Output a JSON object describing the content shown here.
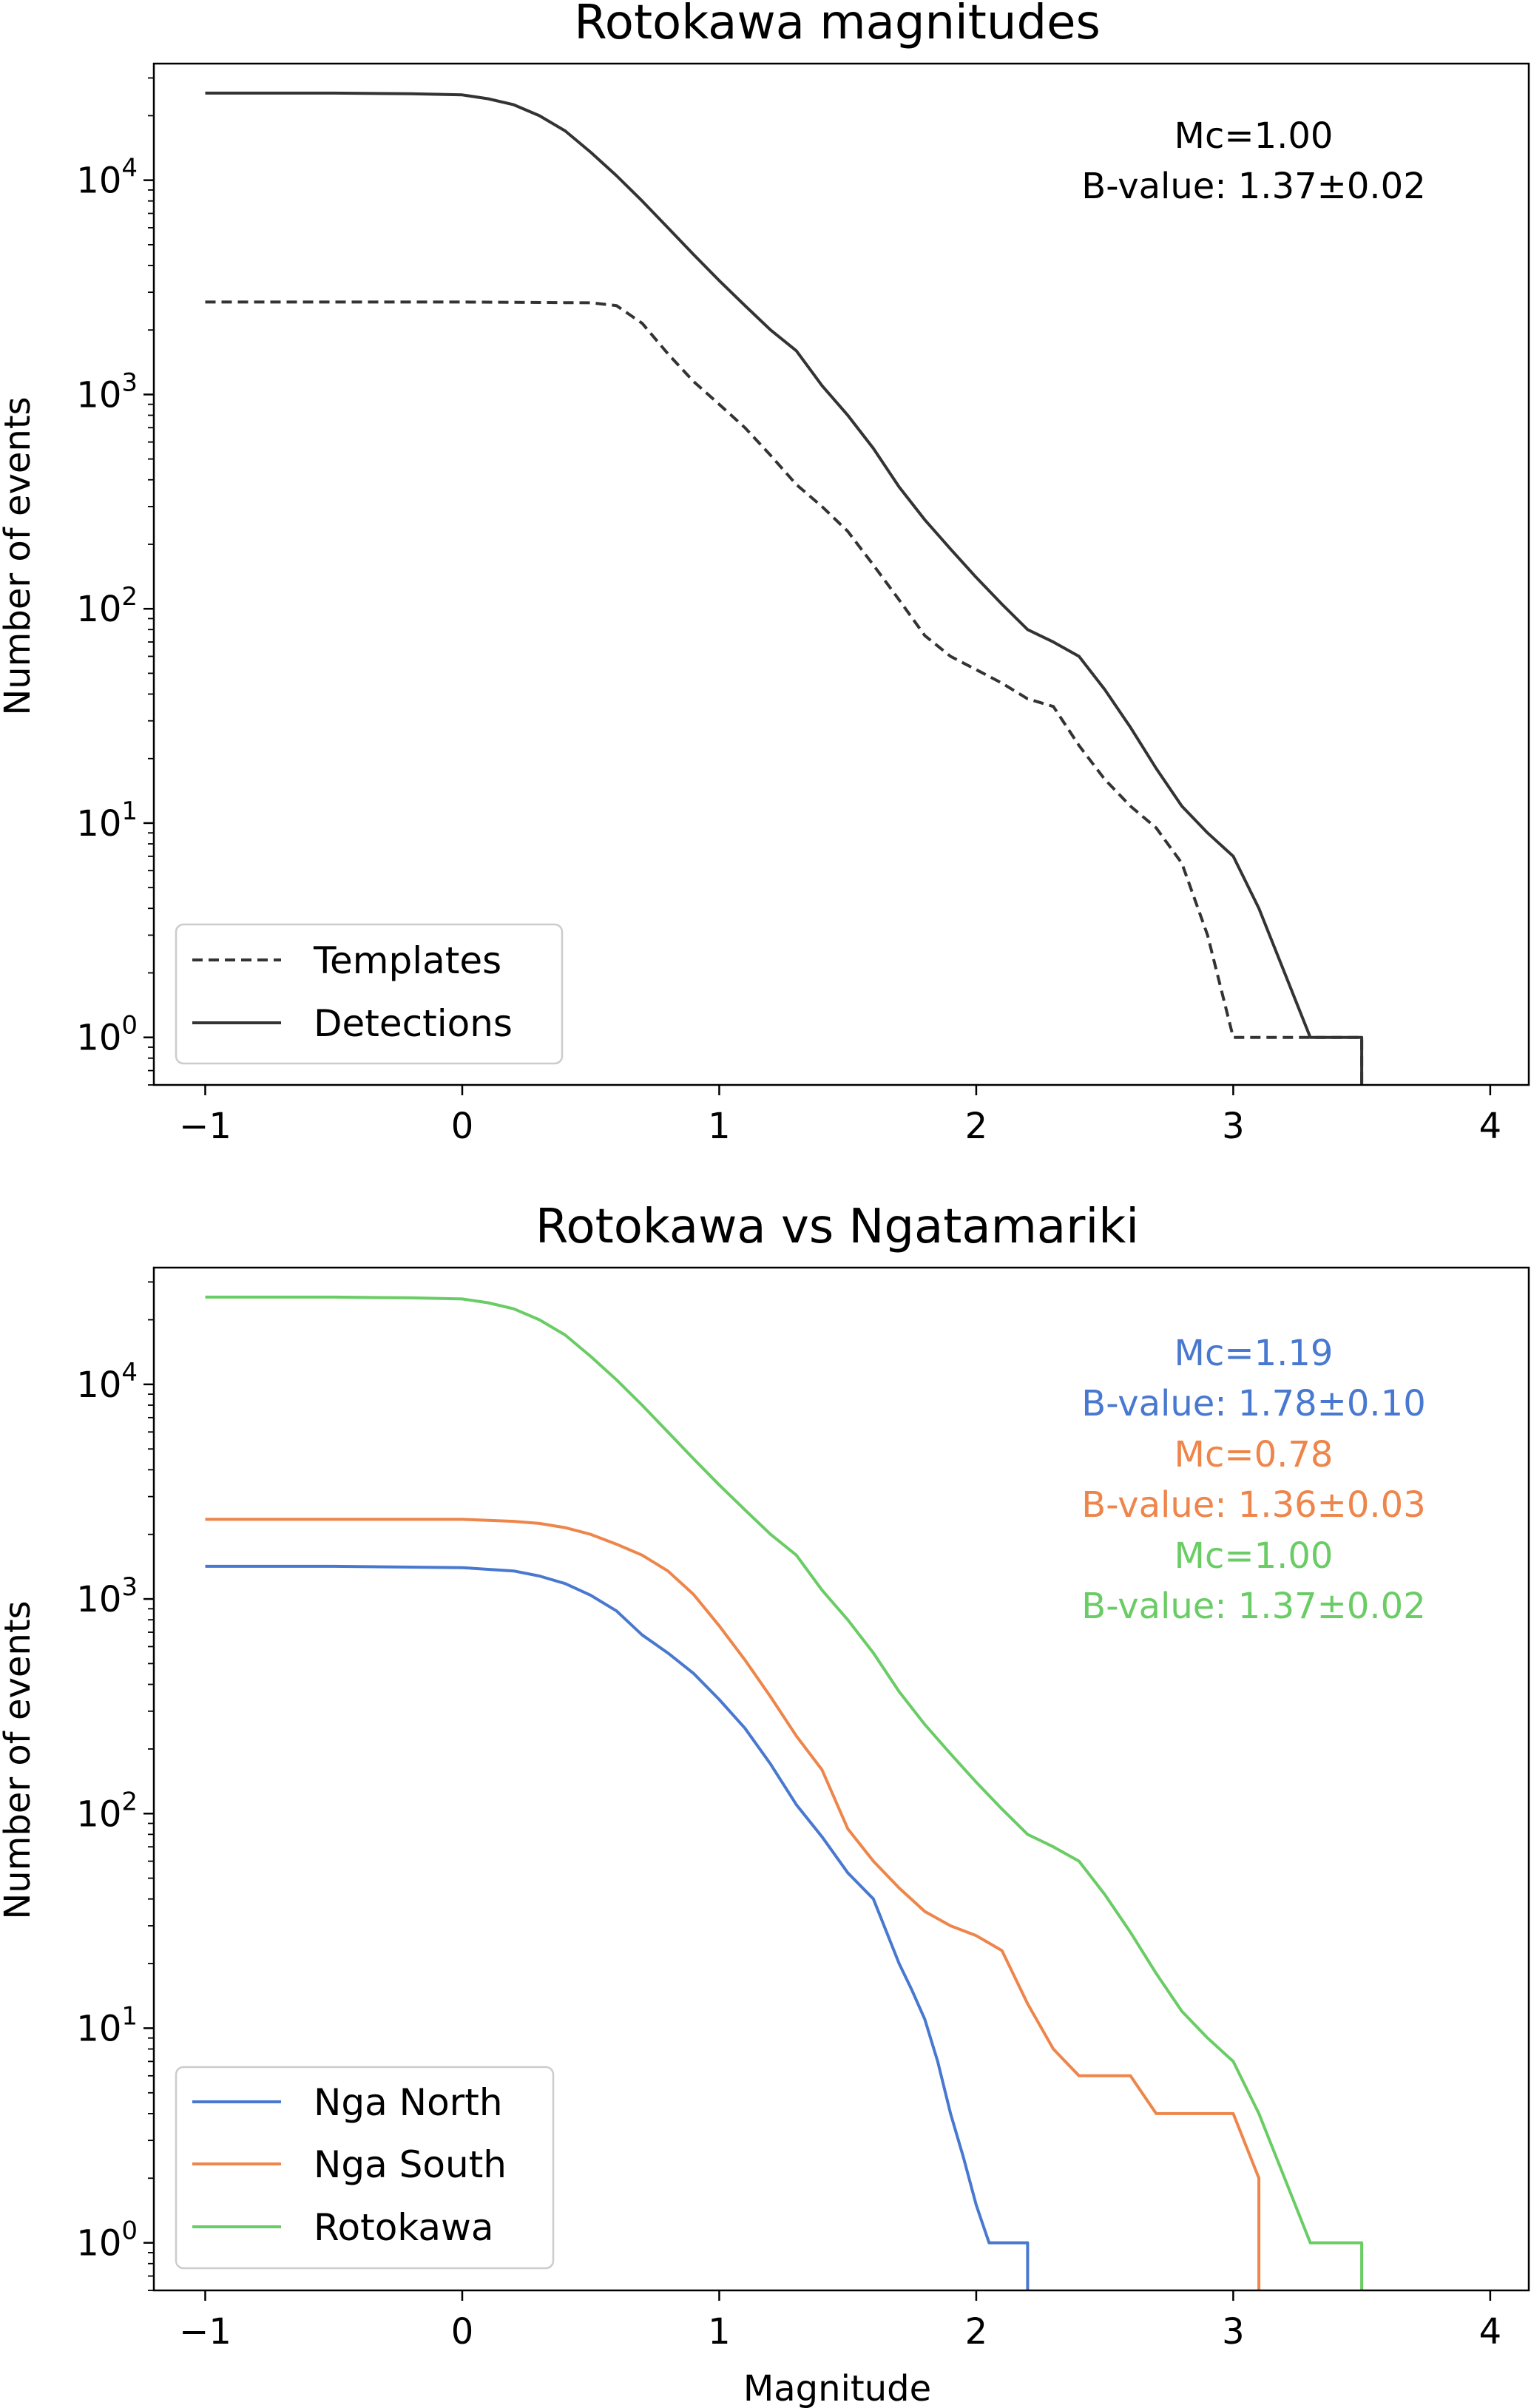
{
  "chart_data": [
    {
      "type": "line",
      "title": "Rotokawa magnitudes",
      "xlabel": "",
      "ylabel": "Number of events",
      "xlim": [
        -1.2,
        4.15
      ],
      "ylim": [
        0.6,
        35000
      ],
      "yscale": "log",
      "xticks": [
        {
          "value": -1,
          "label": "−1"
        },
        {
          "value": 0,
          "label": "0"
        },
        {
          "value": 1,
          "label": "1"
        },
        {
          "value": 2,
          "label": "2"
        },
        {
          "value": 3,
          "label": "3"
        },
        {
          "value": 4,
          "label": "4"
        }
      ],
      "yticks": [
        {
          "value": 1,
          "base": "10",
          "exp": "0"
        },
        {
          "value": 10,
          "base": "10",
          "exp": "1"
        },
        {
          "value": 100,
          "base": "10",
          "exp": "2"
        },
        {
          "value": 1000,
          "base": "10",
          "exp": "3"
        },
        {
          "value": 10000,
          "base": "10",
          "exp": "4"
        }
      ],
      "grid": false,
      "legend_position": "bottom-left",
      "annotations": [
        {
          "text": "Mc=1.00",
          "color": "#000000"
        },
        {
          "text": "B-value: 1.37±0.02",
          "color": "#000000"
        }
      ],
      "series": [
        {
          "name": "Templates",
          "color": "#333333",
          "dash": true,
          "x": [
            -1.0,
            -0.5,
            0.0,
            0.5,
            0.6,
            0.7,
            0.8,
            0.9,
            1.0,
            1.1,
            1.2,
            1.3,
            1.4,
            1.5,
            1.6,
            1.7,
            1.8,
            1.9,
            2.0,
            2.1,
            2.2,
            2.3,
            2.4,
            2.5,
            2.6,
            2.7,
            2.8,
            2.9,
            3.0,
            3.1,
            3.2,
            3.3,
            3.4,
            3.5,
            3.5
          ],
          "y": [
            2700,
            2700,
            2700,
            2680,
            2600,
            2150,
            1550,
            1150,
            900,
            700,
            520,
            380,
            300,
            230,
            160,
            110,
            75,
            60,
            52,
            45,
            38,
            35,
            23,
            16,
            12,
            9.5,
            6.5,
            3.0,
            1.0,
            1.0,
            1.0,
            1.0,
            1.0,
            1.0,
            0.6
          ]
        },
        {
          "name": "Detections",
          "color": "#333333",
          "dash": false,
          "x": [
            -1.0,
            -0.5,
            -0.2,
            0.0,
            0.1,
            0.2,
            0.3,
            0.4,
            0.5,
            0.6,
            0.7,
            0.8,
            0.9,
            1.0,
            1.1,
            1.2,
            1.3,
            1.4,
            1.5,
            1.6,
            1.7,
            1.8,
            1.9,
            2.0,
            2.1,
            2.2,
            2.3,
            2.4,
            2.5,
            2.6,
            2.7,
            2.8,
            2.9,
            3.0,
            3.1,
            3.2,
            3.3,
            3.4,
            3.5,
            3.5
          ],
          "y": [
            25500,
            25500,
            25300,
            25000,
            24000,
            22500,
            20000,
            17000,
            13500,
            10500,
            8000,
            6000,
            4500,
            3400,
            2600,
            2000,
            1600,
            1100,
            800,
            560,
            370,
            260,
            190,
            140,
            105,
            80,
            70,
            60,
            42,
            28,
            18,
            12,
            9,
            7,
            4,
            2,
            1,
            1,
            1,
            0.6
          ]
        }
      ]
    },
    {
      "type": "line",
      "title": "Rotokawa vs Ngatamariki",
      "xlabel": "Magnitude",
      "ylabel": "Number of events",
      "xlim": [
        -1.2,
        4.15
      ],
      "ylim": [
        0.6,
        35000
      ],
      "yscale": "log",
      "xticks": [
        {
          "value": -1,
          "label": "−1"
        },
        {
          "value": 0,
          "label": "0"
        },
        {
          "value": 1,
          "label": "1"
        },
        {
          "value": 2,
          "label": "2"
        },
        {
          "value": 3,
          "label": "3"
        },
        {
          "value": 4,
          "label": "4"
        }
      ],
      "yticks": [
        {
          "value": 1,
          "base": "10",
          "exp": "0"
        },
        {
          "value": 10,
          "base": "10",
          "exp": "1"
        },
        {
          "value": 100,
          "base": "10",
          "exp": "2"
        },
        {
          "value": 1000,
          "base": "10",
          "exp": "3"
        },
        {
          "value": 10000,
          "base": "10",
          "exp": "4"
        }
      ],
      "grid": false,
      "legend_position": "bottom-left",
      "annotations": [
        {
          "text": "Mc=1.19",
          "color": "#4878cf"
        },
        {
          "text": "B-value: 1.78±0.10",
          "color": "#4878cf"
        },
        {
          "text": "Mc=0.78",
          "color": "#ee854a"
        },
        {
          "text": "B-value: 1.36±0.03",
          "color": "#ee854a"
        },
        {
          "text": "Mc=1.00",
          "color": "#6acc64"
        },
        {
          "text": "B-value: 1.37±0.02",
          "color": "#6acc64"
        }
      ],
      "series": [
        {
          "name": "Nga North",
          "color": "#4878cf",
          "dash": false,
          "x": [
            -1.0,
            -0.5,
            0.0,
            0.2,
            0.3,
            0.4,
            0.5,
            0.6,
            0.7,
            0.8,
            0.9,
            1.0,
            1.1,
            1.2,
            1.3,
            1.4,
            1.5,
            1.6,
            1.7,
            1.75,
            1.8,
            1.85,
            1.9,
            1.95,
            2.0,
            2.05,
            2.1,
            2.2,
            2.2
          ],
          "y": [
            1420,
            1420,
            1400,
            1350,
            1280,
            1180,
            1040,
            880,
            680,
            560,
            450,
            340,
            250,
            170,
            110,
            78,
            53,
            40,
            20,
            15,
            11,
            7,
            4,
            2.5,
            1.5,
            1.0,
            1.0,
            1.0,
            0.6
          ]
        },
        {
          "name": "Nga South",
          "color": "#ee854a",
          "dash": false,
          "x": [
            -1.0,
            -0.5,
            0.0,
            0.2,
            0.3,
            0.4,
            0.5,
            0.6,
            0.7,
            0.8,
            0.9,
            1.0,
            1.1,
            1.2,
            1.3,
            1.4,
            1.5,
            1.6,
            1.7,
            1.8,
            1.9,
            2.0,
            2.1,
            2.2,
            2.3,
            2.4,
            2.5,
            2.6,
            2.7,
            2.8,
            2.9,
            3.0,
            3.1,
            3.1
          ],
          "y": [
            2350,
            2350,
            2350,
            2300,
            2250,
            2150,
            2000,
            1800,
            1600,
            1350,
            1050,
            750,
            520,
            350,
            230,
            160,
            85,
            60,
            45,
            35,
            30,
            27,
            23,
            13,
            8,
            6,
            6,
            6,
            4,
            4,
            4,
            4,
            2,
            0.6
          ]
        },
        {
          "name": "Rotokawa",
          "color": "#6acc64",
          "dash": false,
          "x": [
            -1.0,
            -0.5,
            -0.2,
            0.0,
            0.1,
            0.2,
            0.3,
            0.4,
            0.5,
            0.6,
            0.7,
            0.8,
            0.9,
            1.0,
            1.1,
            1.2,
            1.3,
            1.4,
            1.5,
            1.6,
            1.7,
            1.8,
            1.9,
            2.0,
            2.1,
            2.2,
            2.3,
            2.4,
            2.5,
            2.6,
            2.7,
            2.8,
            2.9,
            3.0,
            3.1,
            3.2,
            3.3,
            3.4,
            3.5,
            3.5
          ],
          "y": [
            25500,
            25500,
            25300,
            25000,
            24000,
            22500,
            20000,
            17000,
            13500,
            10500,
            8000,
            6000,
            4500,
            3400,
            2600,
            2000,
            1600,
            1100,
            800,
            560,
            370,
            260,
            190,
            140,
            105,
            80,
            70,
            60,
            42,
            28,
            18,
            12,
            9,
            7,
            4,
            2,
            1,
            1,
            1,
            0.6
          ]
        }
      ]
    }
  ]
}
